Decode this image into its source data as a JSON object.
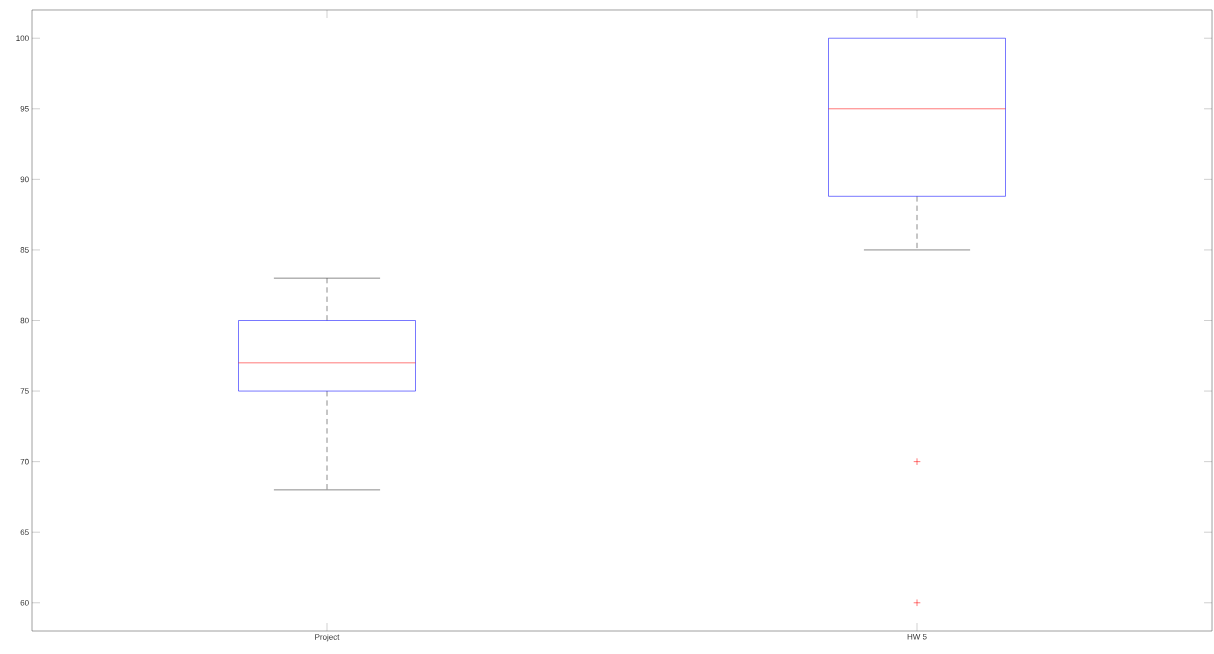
{
  "chart_data": {
    "type": "box",
    "categories": [
      "Project",
      "HW 5"
    ],
    "boxes": [
      {
        "low": 68,
        "q1": 75,
        "median": 77,
        "q3": 80,
        "high": 83
      },
      {
        "low": 85,
        "q1": 88.8,
        "median": 95,
        "q3": 100,
        "high": 100,
        "outliers": [
          70,
          60
        ]
      }
    ],
    "color": "#0000ff",
    "marker": "cross",
    "ylim": [
      58,
      102
    ],
    "yticks": [
      60,
      65,
      70,
      75,
      80,
      85,
      90,
      95,
      100
    ]
  }
}
